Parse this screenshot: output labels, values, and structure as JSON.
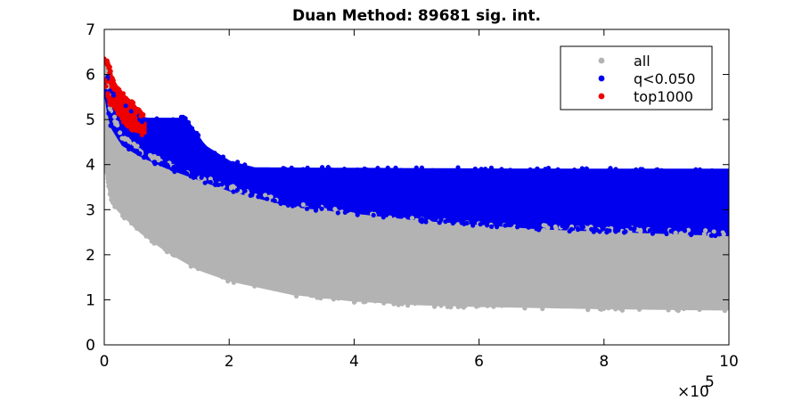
{
  "chart_data": {
    "type": "scatter",
    "title": "Duan Method: 89681 sig. int.",
    "xlabel": "",
    "ylabel": "",
    "xlim": [
      0,
      1000000
    ],
    "ylim": [
      0,
      7
    ],
    "x_ticks": [
      0,
      200000,
      400000,
      600000,
      800000,
      1000000
    ],
    "x_tick_labels": [
      "0",
      "2",
      "4",
      "6",
      "8",
      "10"
    ],
    "x_exponent_label": "×10",
    "x_exponent_power": "5",
    "y_ticks": [
      0,
      1,
      2,
      3,
      4,
      5,
      6,
      7
    ],
    "y_tick_labels": [
      "0",
      "1",
      "2",
      "3",
      "4",
      "5",
      "6",
      "7"
    ],
    "grid": false,
    "legend_position": "top-right",
    "series": [
      {
        "name": "all",
        "color": "#b3b3b3",
        "upper_envelope": [
          [
            0,
            6.3
          ],
          [
            10000,
            5.2
          ],
          [
            30000,
            4.6
          ],
          [
            60000,
            4.3
          ],
          [
            100000,
            4.0
          ],
          [
            200000,
            3.5
          ],
          [
            300000,
            3.1
          ],
          [
            400000,
            2.9
          ],
          [
            500000,
            2.75
          ],
          [
            600000,
            2.65
          ],
          [
            800000,
            2.55
          ],
          [
            1000000,
            2.5
          ]
        ],
        "lower_envelope": [
          [
            0,
            4.3
          ],
          [
            10000,
            3.2
          ],
          [
            30000,
            2.9
          ],
          [
            60000,
            2.5
          ],
          [
            100000,
            2.1
          ],
          [
            150000,
            1.7
          ],
          [
            200000,
            1.45
          ],
          [
            300000,
            1.15
          ],
          [
            400000,
            1.0
          ],
          [
            500000,
            0.92
          ],
          [
            600000,
            0.88
          ],
          [
            800000,
            0.83
          ],
          [
            1000000,
            0.8
          ]
        ]
      },
      {
        "name": "q<0.050",
        "color": "#0000ee",
        "upper_envelope": [
          [
            0,
            6.3
          ],
          [
            10000,
            5.6
          ],
          [
            30000,
            5.3
          ],
          [
            60000,
            5.0
          ],
          [
            130000,
            5.0
          ],
          [
            160000,
            4.4
          ],
          [
            200000,
            4.05
          ],
          [
            240000,
            3.9
          ],
          [
            1000000,
            3.85
          ]
        ],
        "lower_envelope": [
          [
            0,
            5.8
          ],
          [
            10000,
            4.9
          ],
          [
            30000,
            4.45
          ],
          [
            60000,
            4.2
          ],
          [
            100000,
            3.95
          ],
          [
            150000,
            3.7
          ],
          [
            200000,
            3.45
          ],
          [
            300000,
            3.1
          ],
          [
            400000,
            2.95
          ],
          [
            500000,
            2.8
          ],
          [
            600000,
            2.7
          ],
          [
            700000,
            2.6
          ],
          [
            800000,
            2.55
          ],
          [
            1000000,
            2.45
          ]
        ]
      },
      {
        "name": "top1000",
        "color": "#ee0000",
        "upper_envelope": [
          [
            0,
            6.35
          ],
          [
            8000,
            6.2
          ],
          [
            12000,
            5.9
          ],
          [
            25000,
            5.6
          ],
          [
            45000,
            5.35
          ],
          [
            60000,
            5.1
          ],
          [
            65000,
            5.0
          ]
        ],
        "lower_envelope": [
          [
            0,
            5.9
          ],
          [
            8000,
            5.4
          ],
          [
            20000,
            5.2
          ],
          [
            35000,
            4.9
          ],
          [
            50000,
            4.75
          ],
          [
            65000,
            4.7
          ]
        ]
      }
    ],
    "stripes": [
      {
        "series": "q<0.050",
        "x_range": [
          200000,
          1000000
        ],
        "y": 3.85
      },
      {
        "series": "q<0.050",
        "x_range": [
          220000,
          1000000
        ],
        "y": 3.7
      },
      {
        "series": "q<0.050",
        "x_range": [
          250000,
          1000000
        ],
        "y": 3.35
      },
      {
        "series": "q<0.050",
        "x_range": [
          400000,
          1000000
        ],
        "y": 3.2
      },
      {
        "series": "q<0.050",
        "x_range": [
          70000,
          130000
        ],
        "y": 4.95
      },
      {
        "series": "q<0.050",
        "x_range": [
          70000,
          140000
        ],
        "y": 4.8
      },
      {
        "series": "q<0.050",
        "x_range": [
          80000,
          150000
        ],
        "y": 4.65
      }
    ]
  }
}
